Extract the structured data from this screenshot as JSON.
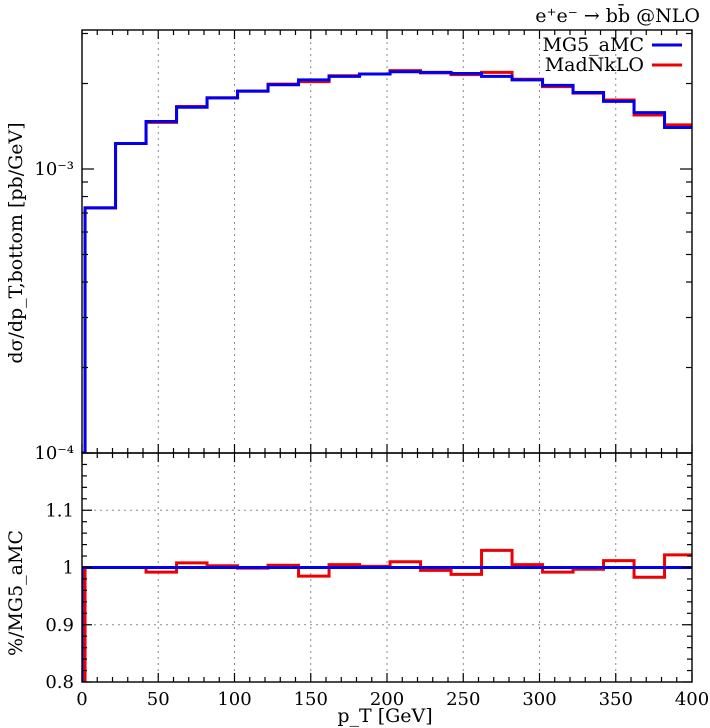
{
  "chart_data": [
    {
      "type": "line",
      "panel": "main",
      "title": "e⁺e⁻ → bb̄ @NLO",
      "xlabel": "",
      "ylabel": "dσ/dp_T,bottom [pb/GeV]",
      "yscale": "log",
      "ylim": [
        0.0001,
        0.0035
      ],
      "xlim": [
        0,
        400
      ],
      "grid": true,
      "legend_position": "top-right",
      "y_tick_labels": [
        "10⁻⁴",
        "10⁻³"
      ],
      "bin_edges": [
        0,
        2,
        22,
        42,
        62,
        82,
        102,
        122,
        142,
        162,
        182,
        202,
        222,
        242,
        262,
        282,
        302,
        322,
        342,
        362,
        382,
        400
      ],
      "series": [
        {
          "name": "MG5_aMC",
          "color": "#0000ee",
          "values": [
            0.0001,
            0.00073,
            0.00123,
            0.00147,
            0.00165,
            0.00178,
            0.00188,
            0.00198,
            0.00206,
            0.00212,
            0.00216,
            0.0022,
            0.00219,
            0.00217,
            0.00212,
            0.00206,
            0.00197,
            0.00186,
            0.00173,
            0.00158,
            0.0014
          ]
        },
        {
          "name": "MadNkLO",
          "color": "#ee0000",
          "values": [
            0.0001,
            0.00073,
            0.00123,
            0.00146,
            0.00166,
            0.00178,
            0.00188,
            0.00199,
            0.00203,
            0.00213,
            0.00216,
            0.00222,
            0.00218,
            0.00215,
            0.00219,
            0.00207,
            0.00195,
            0.00185,
            0.00175,
            0.00155,
            0.00143
          ]
        }
      ]
    },
    {
      "type": "line",
      "panel": "ratio",
      "xlabel": "p_T [GeV]",
      "ylabel": "%/MG5_aMC",
      "xlim": [
        0,
        400
      ],
      "ylim": [
        0.8,
        1.2
      ],
      "grid": true,
      "x_tick_labels": [
        "0",
        "50",
        "100",
        "150",
        "200",
        "250",
        "300",
        "350",
        "400"
      ],
      "y_tick_labels": [
        "0.8",
        "0.9",
        "1",
        "1.1"
      ],
      "bin_edges": [
        0,
        2,
        22,
        42,
        62,
        82,
        102,
        122,
        142,
        162,
        182,
        202,
        222,
        242,
        262,
        282,
        302,
        322,
        342,
        362,
        382,
        400
      ],
      "series": [
        {
          "name": "MG5_aMC",
          "color": "#0000ee",
          "values": [
            1,
            1,
            1,
            1,
            1,
            1,
            1,
            1,
            1,
            1,
            1,
            1,
            1,
            1,
            1,
            1,
            1,
            1,
            1,
            1,
            1
          ]
        },
        {
          "name": "MadNkLO",
          "color": "#ee0000",
          "values": [
            0.5,
            1.0,
            1.0,
            0.992,
            1.008,
            1.003,
            0.999,
            1.004,
            0.985,
            1.005,
            1.002,
            1.01,
            0.995,
            0.988,
            1.03,
            1.005,
            0.992,
            0.997,
            1.012,
            0.983,
            1.022
          ]
        }
      ]
    }
  ]
}
